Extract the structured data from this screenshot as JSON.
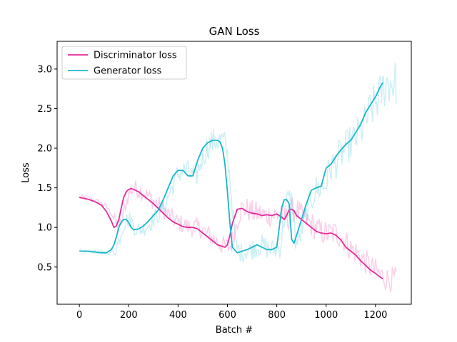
{
  "chart_data": {
    "type": "line",
    "title": "GAN Loss",
    "xlabel": "Batch #",
    "ylabel": "Loss",
    "xlim": [
      -90,
      1345
    ],
    "ylim": [
      0.03,
      3.35
    ],
    "xticks": [
      0,
      200,
      400,
      600,
      800,
      1000,
      1200
    ],
    "yticks": [
      0.5,
      1.0,
      1.5,
      2.0,
      2.5,
      3.0
    ],
    "ytick_labels": [
      "0.5",
      "1.0",
      "1.5",
      "2.0",
      "2.5",
      "3.0"
    ],
    "grid": false,
    "legend": {
      "placement": "top-left"
    },
    "series": [
      {
        "name": "Discriminator loss",
        "color": "#e6299a",
        "x": [
          0,
          30,
          60,
          90,
          110,
          130,
          140,
          150,
          160,
          170,
          180,
          190,
          200,
          210,
          220,
          240,
          260,
          280,
          300,
          320,
          340,
          360,
          380,
          400,
          420,
          440,
          460,
          480,
          500,
          520,
          540,
          560,
          580,
          590,
          600,
          610,
          620,
          640,
          660,
          680,
          700,
          720,
          740,
          760,
          780,
          800,
          820,
          830,
          840,
          850,
          860,
          870,
          880,
          900,
          920,
          940,
          960,
          980,
          1000,
          1020,
          1040,
          1060,
          1080,
          1100,
          1120,
          1140,
          1160,
          1180,
          1200,
          1220,
          1230
        ],
        "y": [
          1.38,
          1.36,
          1.33,
          1.28,
          1.2,
          1.08,
          1.0,
          1.02,
          1.1,
          1.25,
          1.38,
          1.45,
          1.48,
          1.49,
          1.48,
          1.45,
          1.4,
          1.35,
          1.3,
          1.24,
          1.18,
          1.12,
          1.07,
          1.04,
          1.01,
          1.0,
          1.0,
          0.98,
          0.93,
          0.88,
          0.83,
          0.78,
          0.76,
          0.75,
          0.78,
          0.9,
          1.05,
          1.23,
          1.24,
          1.2,
          1.18,
          1.17,
          1.15,
          1.16,
          1.15,
          1.17,
          1.13,
          1.1,
          1.15,
          1.22,
          1.23,
          1.21,
          1.15,
          1.1,
          1.05,
          1.0,
          0.95,
          0.93,
          0.92,
          0.93,
          0.9,
          0.84,
          0.75,
          0.7,
          0.65,
          0.58,
          0.52,
          0.46,
          0.42,
          0.37,
          0.35
        ]
      },
      {
        "name": "Generator loss",
        "color": "#17b7cd",
        "x": [
          0,
          30,
          60,
          90,
          110,
          130,
          140,
          150,
          160,
          170,
          180,
          190,
          200,
          210,
          220,
          240,
          260,
          280,
          300,
          320,
          340,
          360,
          380,
          400,
          420,
          440,
          460,
          480,
          500,
          520,
          540,
          560,
          570,
          580,
          590,
          600,
          610,
          620,
          640,
          660,
          680,
          700,
          720,
          740,
          760,
          780,
          800,
          810,
          820,
          830,
          840,
          850,
          860,
          870,
          880,
          900,
          920,
          940,
          960,
          980,
          1000,
          1020,
          1040,
          1060,
          1080,
          1100,
          1120,
          1140,
          1160,
          1180,
          1200,
          1220,
          1230
        ],
        "y": [
          0.7,
          0.7,
          0.69,
          0.68,
          0.68,
          0.72,
          0.78,
          0.88,
          1.0,
          1.07,
          1.1,
          1.1,
          1.06,
          1.0,
          0.97,
          0.98,
          1.02,
          1.08,
          1.15,
          1.22,
          1.35,
          1.5,
          1.65,
          1.72,
          1.72,
          1.65,
          1.65,
          1.85,
          2.0,
          2.07,
          2.1,
          2.1,
          2.08,
          2.0,
          1.8,
          1.45,
          1.05,
          0.75,
          0.68,
          0.7,
          0.72,
          0.75,
          0.78,
          0.75,
          0.72,
          0.72,
          0.75,
          1.0,
          1.25,
          1.35,
          1.35,
          1.3,
          0.85,
          0.8,
          0.9,
          1.1,
          1.3,
          1.47,
          1.5,
          1.52,
          1.75,
          1.8,
          1.9,
          1.98,
          2.05,
          2.1,
          2.2,
          2.3,
          2.45,
          2.55,
          2.65,
          2.78,
          2.83
        ]
      }
    ]
  }
}
